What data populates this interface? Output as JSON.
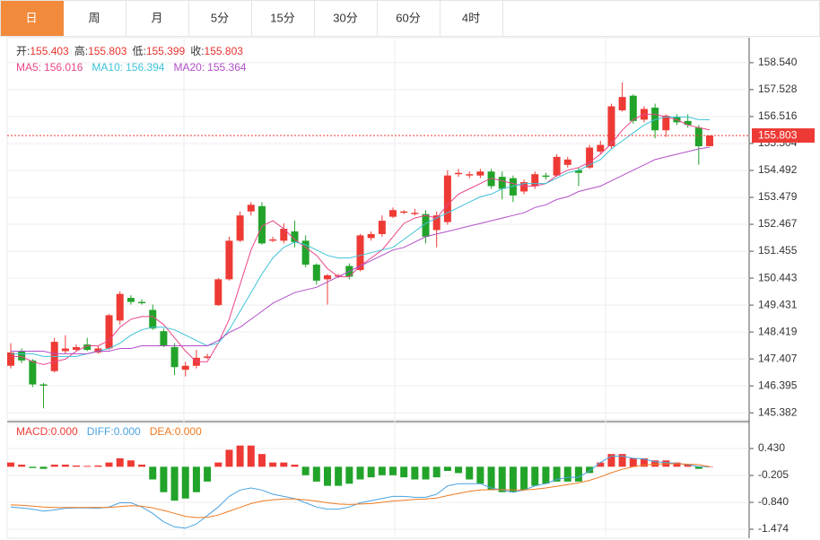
{
  "tabs": [
    "日",
    "周",
    "月",
    "5分",
    "15分",
    "30分",
    "60分",
    "4时"
  ],
  "chart_data": {
    "type": "candlestick",
    "ohlc_labels": [
      "开:",
      "高:",
      "低:",
      "收:"
    ],
    "candles": {
      "open": [
        147.15,
        147.7,
        147.35,
        146.45,
        146.95,
        147.7,
        147.75,
        147.95,
        147.65,
        147.8,
        148.85,
        149.7,
        149.55,
        149.25,
        148.45,
        147.85,
        147.0,
        147.15,
        147.45,
        149.43,
        150.4,
        151.85,
        152.95,
        153.15,
        151.85,
        151.85,
        152.2,
        151.85,
        150.95,
        150.4,
        150.5,
        150.9,
        150.75,
        151.95,
        152.1,
        152.75,
        152.9,
        152.85,
        152.85,
        152.25,
        152.55,
        154.35,
        154.3,
        154.3,
        154.45,
        154.25,
        154.2,
        153.7,
        153.9,
        154.3,
        154.3,
        154.7,
        154.5,
        154.6,
        155.2,
        155.4,
        156.75,
        157.3,
        156.4,
        156.85,
        156.0,
        156.5,
        156.35,
        156.1,
        155.403
      ],
      "high": [
        148.0,
        147.8,
        147.4,
        146.5,
        148.2,
        148.3,
        147.95,
        148.2,
        147.9,
        149.1,
        149.95,
        149.8,
        149.65,
        149.45,
        148.55,
        148.0,
        147.3,
        147.75,
        147.6,
        150.45,
        152.0,
        152.95,
        153.3,
        153.3,
        152.0,
        152.5,
        152.6,
        152.05,
        151.0,
        150.6,
        150.6,
        151.0,
        152.1,
        152.2,
        152.8,
        153.1,
        153.0,
        153.05,
        153.0,
        152.95,
        154.5,
        154.55,
        154.45,
        154.55,
        154.55,
        154.45,
        154.3,
        154.15,
        154.45,
        154.4,
        155.1,
        155.0,
        154.6,
        155.45,
        155.6,
        157.0,
        157.8,
        157.35,
        156.9,
        157.0,
        156.6,
        156.6,
        156.6,
        156.2,
        155.803
      ],
      "low": [
        147.05,
        147.25,
        146.35,
        145.55,
        146.9,
        147.6,
        147.7,
        147.7,
        147.6,
        147.75,
        148.7,
        149.45,
        149.45,
        148.5,
        147.85,
        146.8,
        146.75,
        147.05,
        147.4,
        149.4,
        150.35,
        151.8,
        152.8,
        151.7,
        151.8,
        151.75,
        151.6,
        150.85,
        150.2,
        149.45,
        150.45,
        150.4,
        150.7,
        151.85,
        152.0,
        152.7,
        152.85,
        152.8,
        151.75,
        151.6,
        152.45,
        154.25,
        154.2,
        154.2,
        153.8,
        153.4,
        153.3,
        153.6,
        153.8,
        154.15,
        154.25,
        154.6,
        153.9,
        154.55,
        155.1,
        155.3,
        156.7,
        156.25,
        156.3,
        155.7,
        155.75,
        156.2,
        156.1,
        154.7,
        155.399
      ],
      "close": [
        147.65,
        147.35,
        146.45,
        146.4,
        148.05,
        147.8,
        147.85,
        147.75,
        147.8,
        149.05,
        149.85,
        149.55,
        149.5,
        148.55,
        147.9,
        147.1,
        147.15,
        147.45,
        147.5,
        150.4,
        151.85,
        152.8,
        153.2,
        151.75,
        151.9,
        152.3,
        151.8,
        150.95,
        150.35,
        150.55,
        150.55,
        150.5,
        152.05,
        152.1,
        152.6,
        153.0,
        152.95,
        152.9,
        152.0,
        152.8,
        154.3,
        154.4,
        154.35,
        154.45,
        153.9,
        153.8,
        153.55,
        154.05,
        154.35,
        154.25,
        155.0,
        154.9,
        154.4,
        155.35,
        155.45,
        156.9,
        157.25,
        156.35,
        156.8,
        156.0,
        156.55,
        156.3,
        156.2,
        155.4,
        155.803
      ],
      "up_color": "#ee3a35",
      "down_color": "#22a32a"
    },
    "series": [
      {
        "name": "MA5:",
        "color": "#e8468a",
        "values": [
          147.5,
          147.5,
          147.3,
          147.2,
          147.3,
          147.4,
          147.7,
          147.9,
          147.9,
          148.1,
          148.6,
          148.9,
          149.0,
          149.0,
          148.7,
          148.2,
          147.7,
          147.3,
          147.3,
          148.0,
          148.9,
          150.2,
          151.5,
          152.4,
          152.6,
          152.3,
          151.9,
          151.6,
          151.3,
          150.8,
          150.5,
          150.5,
          150.9,
          151.2,
          151.5,
          152.0,
          152.5,
          152.7,
          152.8,
          152.7,
          153.2,
          153.6,
          153.8,
          154.0,
          154.2,
          154.1,
          154.0,
          153.9,
          153.9,
          154.0,
          154.3,
          154.5,
          154.6,
          154.8,
          155.1,
          155.5,
          156.0,
          156.4,
          156.6,
          156.6,
          156.5,
          156.4,
          156.2,
          156.1,
          156.016
        ]
      },
      {
        "name": "MA10:",
        "color": "#3ec3d8",
        "values": [
          147.6,
          147.6,
          147.6,
          147.5,
          147.5,
          147.5,
          147.5,
          147.6,
          147.7,
          147.8,
          148.0,
          148.3,
          148.5,
          148.6,
          148.6,
          148.5,
          148.3,
          148.1,
          147.9,
          148.0,
          148.5,
          149.2,
          149.9,
          150.6,
          151.2,
          151.6,
          151.8,
          151.7,
          151.5,
          151.3,
          151.2,
          151.2,
          151.3,
          151.4,
          151.5,
          151.6,
          151.9,
          152.2,
          152.5,
          152.7,
          152.9,
          153.1,
          153.3,
          153.5,
          153.6,
          153.8,
          153.9,
          154.0,
          154.0,
          154.0,
          154.2,
          154.4,
          154.5,
          154.7,
          154.9,
          155.3,
          155.6,
          155.9,
          156.2,
          156.4,
          156.5,
          156.5,
          156.5,
          156.4,
          156.394
        ]
      },
      {
        "name": "MA20:",
        "color": "#b24fc8",
        "values": [
          147.7,
          147.7,
          147.7,
          147.7,
          147.6,
          147.6,
          147.6,
          147.6,
          147.7,
          147.7,
          147.8,
          147.8,
          147.9,
          147.9,
          147.9,
          147.9,
          147.9,
          147.9,
          147.9,
          148.1,
          148.4,
          148.6,
          148.9,
          149.2,
          149.5,
          149.7,
          149.9,
          150.0,
          150.1,
          150.3,
          150.5,
          150.7,
          150.9,
          151.1,
          151.3,
          151.5,
          151.6,
          151.8,
          152.0,
          152.1,
          152.2,
          152.3,
          152.4,
          152.5,
          152.6,
          152.7,
          152.8,
          152.9,
          153.1,
          153.2,
          153.4,
          153.5,
          153.7,
          153.8,
          153.9,
          154.1,
          154.3,
          154.5,
          154.7,
          154.9,
          155.0,
          155.1,
          155.2,
          155.3,
          155.364
        ]
      }
    ],
    "ylim": [
      145.12,
      159.48
    ],
    "yticks": [
      145.382,
      146.395,
      147.407,
      148.419,
      149.431,
      150.443,
      151.455,
      152.467,
      153.479,
      154.492,
      155.504,
      156.516,
      157.528,
      {
        "value": 158.54,
        "label": "158.540"
      }
    ],
    "grid": true,
    "last_price_color": "#ee3a35",
    "macd": {
      "legend_values": [
        "0.000",
        "0.000",
        "0.000"
      ],
      "bars": {
        "name": "MACD:",
        "up_color": "#ee3a35",
        "down_color": "#22a32a",
        "values": [
          0.1,
          0.05,
          -0.03,
          -0.05,
          0.05,
          0.05,
          0.03,
          0.02,
          0.03,
          0.1,
          0.2,
          0.15,
          0.05,
          -0.3,
          -0.6,
          -0.8,
          -0.75,
          -0.6,
          -0.35,
          0.1,
          0.4,
          0.5,
          0.5,
          0.3,
          0.1,
          0.1,
          0.05,
          -0.2,
          -0.35,
          -0.45,
          -0.45,
          -0.4,
          -0.3,
          -0.25,
          -0.2,
          -0.2,
          -0.25,
          -0.3,
          -0.3,
          -0.25,
          -0.1,
          -0.15,
          -0.3,
          -0.4,
          -0.55,
          -0.6,
          -0.6,
          -0.55,
          -0.45,
          -0.4,
          -0.35,
          -0.35,
          -0.35,
          -0.15,
          0.1,
          0.3,
          0.3,
          0.2,
          0.2,
          0.15,
          0.15,
          0.1,
          0.05,
          -0.05,
          0
        ]
      },
      "series": [
        {
          "name": "DIFF:",
          "color": "#4aa3e0",
          "values": [
            -0.95,
            -0.97,
            -1.0,
            -1.05,
            -1.02,
            -0.98,
            -0.97,
            -0.97,
            -0.98,
            -0.95,
            -0.85,
            -0.85,
            -0.95,
            -1.1,
            -1.3,
            -1.42,
            -1.45,
            -1.35,
            -1.15,
            -0.95,
            -0.7,
            -0.55,
            -0.5,
            -0.55,
            -0.65,
            -0.7,
            -0.75,
            -0.85,
            -0.95,
            -1.0,
            -1.0,
            -0.95,
            -0.85,
            -0.8,
            -0.75,
            -0.7,
            -0.7,
            -0.72,
            -0.72,
            -0.65,
            -0.45,
            -0.4,
            -0.4,
            -0.4,
            -0.5,
            -0.55,
            -0.6,
            -0.55,
            -0.45,
            -0.4,
            -0.3,
            -0.25,
            -0.25,
            -0.1,
            0.1,
            0.25,
            0.25,
            0.2,
            0.18,
            0.12,
            0.1,
            0.08,
            0.05,
            0.0,
            0.0
          ]
        },
        {
          "name": "DEA:",
          "color": "#f07a20",
          "values": [
            -0.9,
            -0.91,
            -0.93,
            -0.95,
            -0.96,
            -0.96,
            -0.96,
            -0.96,
            -0.96,
            -0.96,
            -0.94,
            -0.92,
            -0.93,
            -0.97,
            -1.03,
            -1.1,
            -1.17,
            -1.2,
            -1.19,
            -1.14,
            -1.05,
            -0.96,
            -0.87,
            -0.81,
            -0.78,
            -0.76,
            -0.76,
            -0.78,
            -0.81,
            -0.85,
            -0.88,
            -0.89,
            -0.88,
            -0.87,
            -0.84,
            -0.81,
            -0.79,
            -0.77,
            -0.76,
            -0.74,
            -0.68,
            -0.63,
            -0.58,
            -0.55,
            -0.54,
            -0.54,
            -0.55,
            -0.55,
            -0.53,
            -0.5,
            -0.46,
            -0.42,
            -0.38,
            -0.32,
            -0.24,
            -0.14,
            -0.06,
            0.0,
            0.04,
            0.06,
            0.07,
            0.07,
            0.06,
            0.05,
            0.0
          ]
        }
      ],
      "ylim": [
        -1.686,
        1.023
      ],
      "yticks": [
        {
          "value": 0.43,
          "label": "0.430"
        },
        -0.205,
        {
          "value": -0.84,
          "label": "-0.840"
        },
        -1.474
      ]
    }
  }
}
